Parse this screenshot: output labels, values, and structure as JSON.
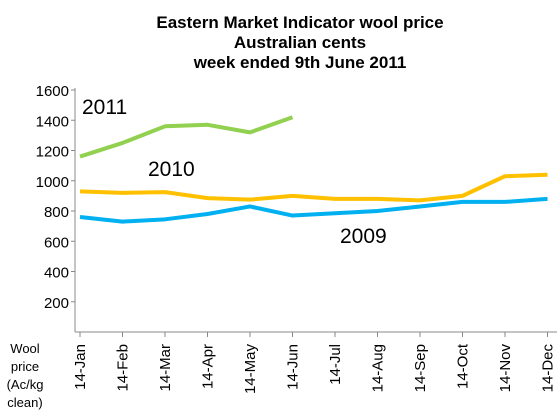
{
  "chart_data": {
    "type": "line",
    "title": [
      "Eastern Market Indicator wool price",
      "Australian cents",
      "week ended 9th June 2011"
    ],
    "ylabel": [
      "Wool",
      "price",
      "(Ac/kg",
      "clean)"
    ],
    "categories": [
      "14-Jan",
      "14-Feb",
      "14-Mar",
      "14-Apr",
      "14-May",
      "14-Jun",
      "14-Jul",
      "14-Aug",
      "14-Sep",
      "14-Oct",
      "14-Nov",
      "14-Dec"
    ],
    "series": [
      {
        "name": "2011",
        "color": "#92d050",
        "values": [
          1160,
          1250,
          1360,
          1370,
          1320,
          1420,
          null,
          null,
          null,
          null,
          null,
          null
        ]
      },
      {
        "name": "2010",
        "color": "#ffc000",
        "values": [
          930,
          920,
          925,
          885,
          875,
          900,
          880,
          880,
          870,
          900,
          1030,
          1040
        ]
      },
      {
        "name": "2009",
        "color": "#00b0f0",
        "values": [
          760,
          730,
          745,
          780,
          830,
          770,
          785,
          800,
          830,
          860,
          860,
          880
        ]
      }
    ],
    "ylim": [
      0,
      1600
    ],
    "yticks": [
      200,
      400,
      600,
      800,
      1000,
      1200,
      1400,
      1600
    ],
    "grid": false
  }
}
